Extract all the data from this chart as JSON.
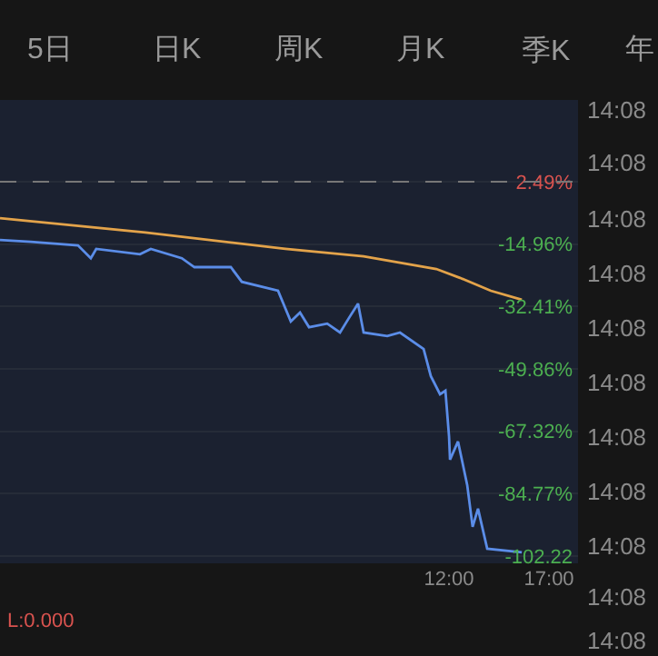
{
  "chart_data": {
    "type": "line",
    "annotations": [
      "5日",
      "日K",
      "周K",
      "月K",
      "季K",
      "年",
      "14:08",
      "14:08",
      "14:08",
      "14:08",
      "14:08",
      "14:08",
      "14:08",
      "14:08",
      "14:08",
      "14:08",
      "14:08",
      "L:0.000"
    ],
    "series": [
      {
        "color": "#e3a34a",
        "x": [
          -10.45,
          -3.18,
          3.82,
          7.73,
          11.36,
          12.55,
          14.09,
          15.64
        ],
        "values": [
          -7.7,
          -11.7,
          -16.3,
          -18.4,
          -21.9,
          -24.4,
          -28.0,
          -30.5
        ]
      },
      {
        "color": "#5b8de8",
        "x": [
          -10.45,
          -8.91,
          -6.55,
          -5.91,
          -5.64,
          -3.45,
          -2.91,
          -1.36,
          -0.73,
          1.09,
          1.64,
          3.45,
          4.09,
          4.55,
          5.0,
          5.91,
          6.55,
          7.0,
          7.45,
          7.73,
          8.91,
          9.55,
          10.73,
          11.09,
          11.55,
          11.82,
          12.0,
          12.05,
          12.45,
          12.91,
          13.18,
          13.45,
          13.91,
          15.64
        ],
        "values": [
          -13.8,
          -14.3,
          -15.3,
          -18.9,
          -16.3,
          -17.8,
          -16.3,
          -18.9,
          -21.4,
          -21.4,
          -25.5,
          -28.0,
          -36.6,
          -34.1,
          -38.2,
          -37.2,
          -39.7,
          -35.6,
          -31.6,
          -39.7,
          -40.7,
          -39.7,
          -44.3,
          -51.9,
          -57.0,
          -56.0,
          -68.7,
          -75.3,
          -70.2,
          -82.4,
          -94.1,
          -89.0,
          -100.2,
          -101.2
        ]
      }
    ],
    "xlim": [
      -10.45,
      18.45
    ],
    "xticks": [
      {
        "value": 12,
        "label": "12:00"
      },
      {
        "value": 17,
        "label": "17:00"
      }
    ],
    "ylim": [
      -104.3,
      25.4
    ],
    "yticks": [
      {
        "value": 2.49,
        "label": "2.49%"
      },
      {
        "value": -14.96,
        "label": "-14.96%"
      },
      {
        "value": -32.41,
        "label": "-32.41%"
      },
      {
        "value": -49.86,
        "label": "-49.86%"
      },
      {
        "value": -67.32,
        "label": "-67.32%"
      },
      {
        "value": -84.77,
        "label": "-84.77%"
      },
      {
        "value": -102.22,
        "label": "-102.22"
      }
    ],
    "ref_lines": [
      {
        "axis": "y",
        "value": 2.49,
        "color": "#777777",
        "line_style": "dashed"
      }
    ],
    "grid": "y",
    "marker": "none",
    "line_style": "solid"
  }
}
